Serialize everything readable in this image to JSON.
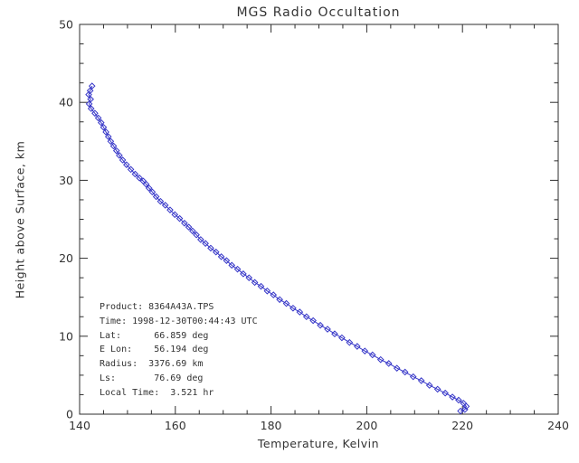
{
  "title": "MGS Radio Occultation",
  "annotation": {
    "lines": [
      "Product: 8364A43A.TPS",
      "Time: 1998-12-30T00:44:43 UTC",
      "Lat:      66.859 deg",
      "E Lon:    56.194 deg",
      "Radius:  3376.69 km",
      "Ls:       76.69 deg",
      "Local Time:  3.521 hr"
    ]
  },
  "chart_data": {
    "type": "line",
    "title": "MGS Radio Occultation",
    "xlabel": "Temperature, Kelvin",
    "ylabel": "Height above Surface, km",
    "xlim": [
      140,
      240
    ],
    "ylim": [
      0,
      50
    ],
    "x_ticks": [
      140,
      160,
      180,
      200,
      220,
      240
    ],
    "y_ticks": [
      0,
      10,
      20,
      30,
      40,
      50
    ],
    "x_minor_step": 5,
    "y_minor_step": 2.5,
    "grid": false,
    "legend": "none",
    "marker": "open-diamond",
    "line_color": "#3636c8",
    "axis_color": "#2e2e2e",
    "text_color": "#333333",
    "series": [
      {
        "name": "temperature-profile",
        "x_is": "temperature_K",
        "y_is": "height_km",
        "points": [
          [
            142.6,
            42.1
          ],
          [
            142.2,
            41.5
          ],
          [
            141.9,
            41.0
          ],
          [
            142.3,
            40.4
          ],
          [
            142.0,
            39.8
          ],
          [
            142.4,
            39.2
          ],
          [
            143.2,
            38.6
          ],
          [
            143.9,
            38.0
          ],
          [
            144.5,
            37.4
          ],
          [
            145.0,
            36.8
          ],
          [
            145.5,
            36.2
          ],
          [
            146.0,
            35.6
          ],
          [
            146.5,
            35.0
          ],
          [
            147.1,
            34.4
          ],
          [
            147.7,
            33.8
          ],
          [
            148.3,
            33.2
          ],
          [
            149.0,
            32.6
          ],
          [
            149.8,
            32.0
          ],
          [
            150.7,
            31.4
          ],
          [
            151.6,
            30.8
          ],
          [
            152.5,
            30.3
          ],
          [
            153.3,
            29.9
          ],
          [
            153.9,
            29.5
          ],
          [
            154.5,
            29.0
          ],
          [
            155.2,
            28.5
          ],
          [
            156.0,
            27.9
          ],
          [
            156.9,
            27.3
          ],
          [
            157.9,
            26.8
          ],
          [
            158.9,
            26.2
          ],
          [
            159.9,
            25.6
          ],
          [
            160.9,
            25.1
          ],
          [
            161.9,
            24.5
          ],
          [
            162.8,
            24.0
          ],
          [
            163.6,
            23.5
          ],
          [
            164.4,
            23.0
          ],
          [
            165.3,
            22.4
          ],
          [
            166.3,
            21.9
          ],
          [
            167.4,
            21.3
          ],
          [
            168.5,
            20.8
          ],
          [
            169.6,
            20.2
          ],
          [
            170.7,
            19.7
          ],
          [
            171.8,
            19.1
          ],
          [
            173.0,
            18.6
          ],
          [
            174.2,
            18.0
          ],
          [
            175.4,
            17.5
          ],
          [
            176.6,
            16.9
          ],
          [
            177.9,
            16.4
          ],
          [
            179.2,
            15.8
          ],
          [
            180.5,
            15.3
          ],
          [
            181.8,
            14.7
          ],
          [
            183.2,
            14.2
          ],
          [
            184.6,
            13.6
          ],
          [
            186.0,
            13.1
          ],
          [
            187.4,
            12.5
          ],
          [
            188.8,
            12.0
          ],
          [
            190.3,
            11.4
          ],
          [
            191.8,
            10.9
          ],
          [
            193.3,
            10.3
          ],
          [
            194.8,
            9.8
          ],
          [
            196.4,
            9.2
          ],
          [
            198.0,
            8.7
          ],
          [
            199.6,
            8.1
          ],
          [
            201.2,
            7.6
          ],
          [
            202.9,
            7.0
          ],
          [
            204.6,
            6.5
          ],
          [
            206.3,
            5.9
          ],
          [
            208.0,
            5.4
          ],
          [
            209.7,
            4.8
          ],
          [
            211.4,
            4.3
          ],
          [
            213.1,
            3.7
          ],
          [
            214.8,
            3.2
          ],
          [
            216.4,
            2.7
          ],
          [
            217.9,
            2.2
          ],
          [
            219.2,
            1.8
          ],
          [
            220.2,
            1.4
          ],
          [
            220.8,
            1.0
          ],
          [
            220.5,
            0.6
          ],
          [
            219.6,
            0.4
          ]
        ]
      }
    ],
    "annotation_text": [
      "Product: 8364A43A.TPS",
      "Time: 1998-12-30T00:44:43 UTC",
      "Lat: 66.859 deg",
      "E Lon: 56.194 deg",
      "Radius: 3376.69 km",
      "Ls: 76.69 deg",
      "Local Time: 3.521 hr"
    ]
  }
}
